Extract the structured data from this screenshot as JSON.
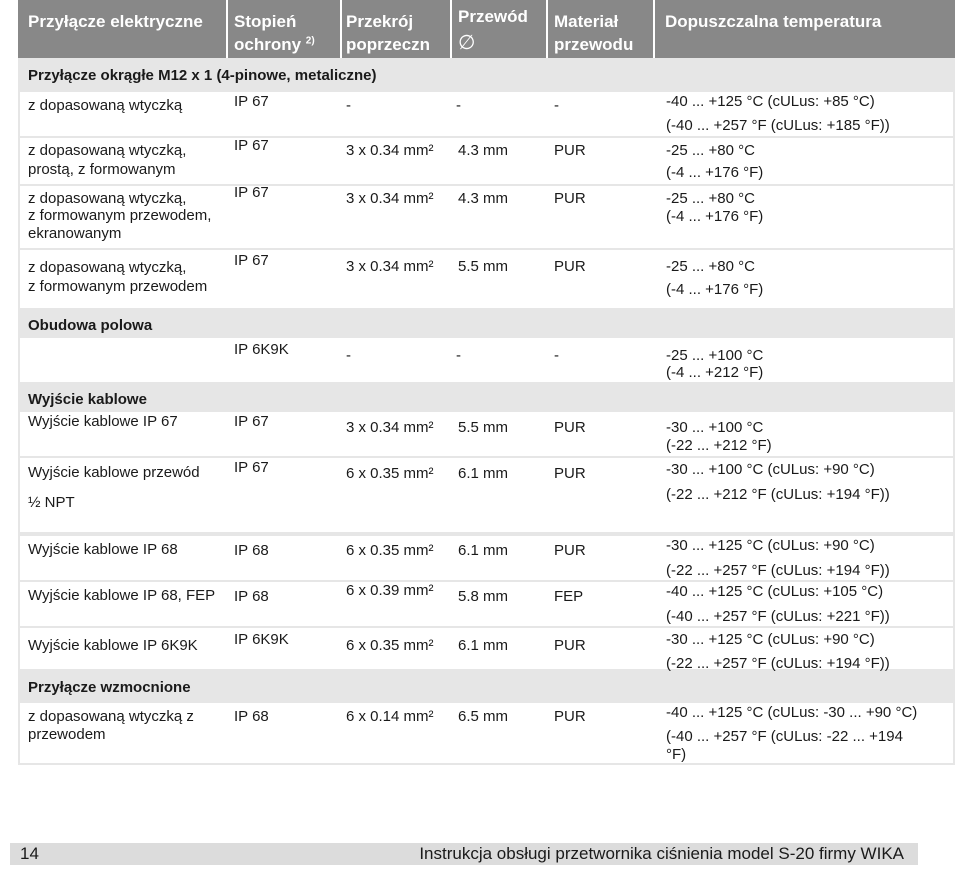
{
  "header": {
    "col1": "Przyłącze elektryczne",
    "col2_line1": "Stopień",
    "col2_line2": "ochrony",
    "col2_sup": "2)",
    "col3_line1": "Przekrój",
    "col3_line2": "poprzeczn",
    "col4_line1": "Przewód",
    "col4_line2": "∅",
    "col5_line1": "Materiał",
    "col5_line2": "przewodu",
    "col6": "Dopuszczalna temperatura"
  },
  "sections": {
    "m12": "Przyłącze okrągłe M12 x 1 (4-pinowe, metaliczne)",
    "field": "Obudowa polowa",
    "cable": "Wyjście kablowe",
    "reinforced": "Przyłącze wzmocnione"
  },
  "rows": [
    {
      "name": [
        "z dopasowaną wtyczką"
      ],
      "ip": "IP 67",
      "cross": "-",
      "dia": "-",
      "mat": "-",
      "temp": [
        "-40 ... +125 °C (cULus: +85 °C)",
        "(-40 ... +257 °F (cULus: +185 °F))"
      ]
    },
    {
      "name": [
        "z dopasowaną wtyczką,",
        "prostą, z formowanym"
      ],
      "ip": "IP 67",
      "cross": "3 x 0.34 mm²",
      "dia": "4.3 mm",
      "mat": "PUR",
      "temp": [
        "-25 ... +80 °C",
        "(-4 ... +176 °F)"
      ]
    },
    {
      "name": [
        "z dopasowaną wtyczką,",
        "z formowanym przewodem,",
        "ekranowanym"
      ],
      "ip": "IP 67",
      "cross": "3 x 0.34 mm²",
      "dia": "4.3 mm",
      "mat": "PUR",
      "temp": [
        "-25 ... +80 °C",
        "(-4 ... +176 °F)"
      ]
    },
    {
      "name": [
        "z dopasowaną wtyczką,",
        "z formowanym przewodem"
      ],
      "ip": "IP 67",
      "cross": "3 x 0.34 mm²",
      "dia": "5.5 mm",
      "mat": "PUR",
      "temp": [
        "-25 ... +80 °C",
        "(-4 ... +176 °F)"
      ]
    },
    {
      "name": [],
      "ip": "IP 6K9K",
      "cross": "-",
      "dia": "-",
      "mat": "-",
      "temp": [
        "-25 ... +100 °C",
        "(-4 ... +212 °F)"
      ]
    },
    {
      "name": [
        "Wyjście kablowe IP 67"
      ],
      "ip": "IP 67",
      "cross": "3 x 0.34 mm²",
      "dia": "5.5 mm",
      "mat": "PUR",
      "temp": [
        "-30 ... +100 °C",
        "(-22 ... +212 °F)"
      ]
    },
    {
      "name": [
        "Wyjście kablowe  przewód",
        "½ NPT"
      ],
      "ip": "IP 67",
      "cross": "6 x 0.35 mm²",
      "dia": "6.1 mm",
      "mat": "PUR",
      "temp": [
        "-30 ... +100 °C (cULus: +90 °C)",
        "(-22 ... +212 °F (cULus: +194 °F))"
      ]
    },
    {
      "name": [
        "Wyjście kablowe  IP 68"
      ],
      "ip": "IP 68",
      "cross": "6 x 0.35 mm²",
      "dia": "6.1 mm",
      "mat": "PUR",
      "temp": [
        "-30 ... +125 °C (cULus: +90 °C)",
        "(-22 ... +257 °F (cULus: +194 °F))"
      ]
    },
    {
      "name": [
        "Wyjście kablowe  IP 68, FEP"
      ],
      "ip": "IP 68",
      "cross": "6 x 0.39 mm²",
      "dia": "5.8 mm",
      "mat": "FEP",
      "temp": [
        "-40 ... +125 °C (cULus: +105 °C)",
        "(-40 ... +257 °F (cULus: +221 °F))"
      ]
    },
    {
      "name": [
        "Wyjście kablowe  IP 6K9K"
      ],
      "ip": "IP 6K9K",
      "cross": "6 x 0.35 mm²",
      "dia": "6.1 mm",
      "mat": "PUR",
      "temp": [
        "-30 ... +125 °C (cULus: +90 °C)",
        "(-22 ... +257 °F (cULus: +194 °F))"
      ]
    },
    {
      "name": [
        "z dopasowaną wtyczką z",
        "przewodem"
      ],
      "ip": "IP 68",
      "cross": "6 x 0.14 mm²",
      "dia": "6.5 mm",
      "mat": "PUR",
      "temp": [
        "-40 ... +125 °C (cULus: -30 ... +90 °C)",
        "(-40 ... +257 °F (cULus: -22 ... +194",
        "°F)"
      ]
    }
  ],
  "footer": {
    "page_number": "14",
    "text": "Instrukcja obsługi przetwornika ciśnienia model S-20 firmy WIKA"
  },
  "colors": {
    "header_bg": "#888888",
    "band_bg": "#e6e6e6",
    "footer_bg": "#dcdcdc"
  }
}
